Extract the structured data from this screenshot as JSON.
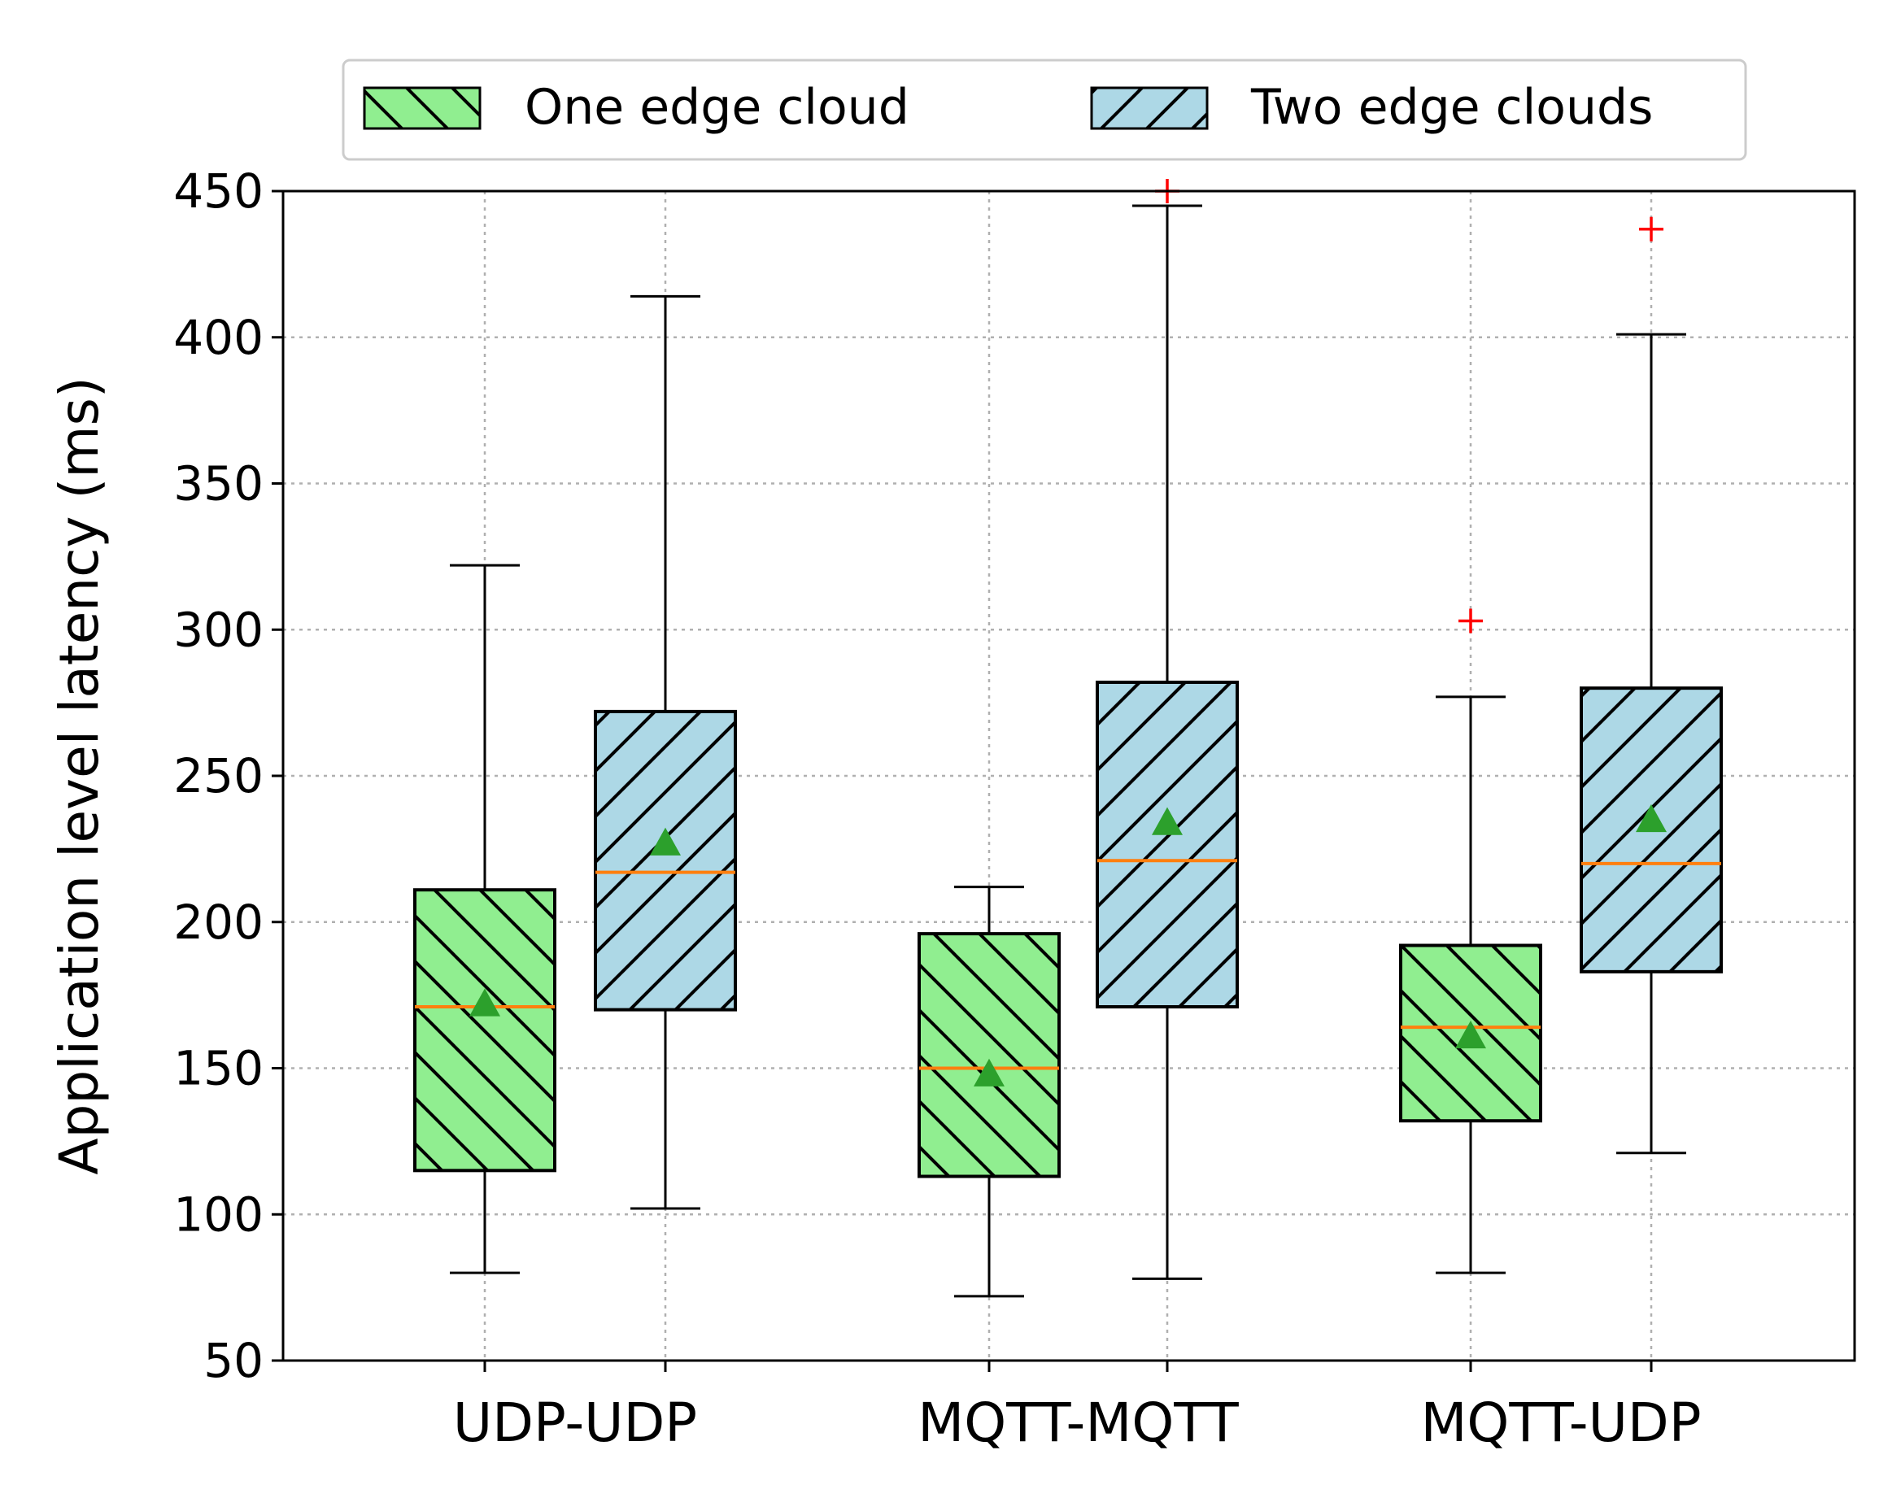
{
  "colors": {
    "one_edge_fill": "#90ee90",
    "two_edge_fill": "#add8e6",
    "median": "#ff7f0e",
    "mean": "#2ca02c",
    "outlier": "#ff0000",
    "grid": "#b0b0b0"
  },
  "chart_data": {
    "type": "box",
    "title": "",
    "xlabel": "",
    "ylabel": "Application level latency (ms)",
    "ylim": [
      50,
      450
    ],
    "yticks": [
      50,
      100,
      150,
      200,
      250,
      300,
      350,
      400,
      450
    ],
    "grid": true,
    "legend_position": "top",
    "categories": [
      "UDP-UDP",
      "MQTT-MQTT",
      "MQTT-UDP"
    ],
    "series": [
      {
        "name": "One edge cloud",
        "color": "#90ee90",
        "hatch": "backslash",
        "boxes": [
          {
            "whisker_low": 80,
            "q1": 115,
            "median": 171,
            "q3": 211,
            "whisker_high": 322,
            "mean": 172,
            "outliers": []
          },
          {
            "whisker_low": 72,
            "q1": 113,
            "median": 150,
            "q3": 196,
            "whisker_high": 212,
            "mean": 148,
            "outliers": []
          },
          {
            "whisker_low": 80,
            "q1": 132,
            "median": 164,
            "q3": 192,
            "whisker_high": 277,
            "mean": 161,
            "outliers": [
              303
            ]
          }
        ]
      },
      {
        "name": "Two edge clouds",
        "color": "#add8e6",
        "hatch": "forward",
        "boxes": [
          {
            "whisker_low": 102,
            "q1": 170,
            "median": 217,
            "q3": 272,
            "whisker_high": 414,
            "mean": 227,
            "outliers": []
          },
          {
            "whisker_low": 78,
            "q1": 171,
            "median": 221,
            "q3": 282,
            "whisker_high": 445,
            "mean": 234,
            "outliers": [
              450
            ]
          },
          {
            "whisker_low": 121,
            "q1": 183,
            "median": 220,
            "q3": 280,
            "whisker_high": 401,
            "mean": 235,
            "outliers": [
              437
            ]
          }
        ]
      }
    ]
  }
}
